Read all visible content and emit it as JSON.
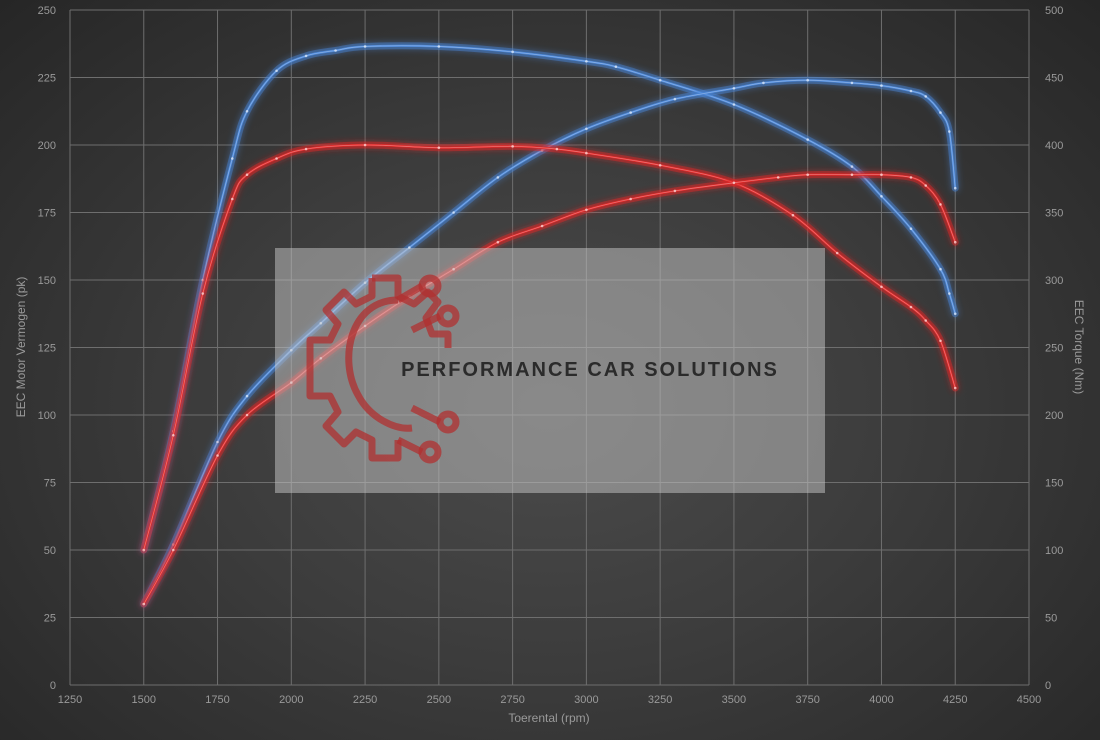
{
  "chart_data": {
    "type": "line",
    "xlabel": "Toerental (rpm)",
    "ylabel_left": "EEC Motor Vermogen (pk)",
    "ylabel_right": "EEC Torque (Nm)",
    "xlim": [
      1250,
      4500
    ],
    "ylim_left": [
      0,
      250
    ],
    "ylim_right": [
      0,
      500
    ],
    "x_ticks": [
      1250,
      1500,
      1750,
      2000,
      2250,
      2500,
      2750,
      3000,
      3250,
      3500,
      3750,
      4000,
      4250,
      4500
    ],
    "y_ticks_left": [
      0,
      25,
      50,
      75,
      100,
      125,
      150,
      175,
      200,
      225,
      250
    ],
    "y_ticks_right": [
      0,
      50,
      100,
      150,
      200,
      250,
      300,
      350,
      400,
      450,
      500
    ],
    "grid": true,
    "series": [
      {
        "axis": "right",
        "color": "#4a86d8",
        "points": [
          [
            1500,
            100
          ],
          [
            1600,
            188
          ],
          [
            1700,
            300
          ],
          [
            1800,
            390
          ],
          [
            1850,
            425
          ],
          [
            1950,
            455
          ],
          [
            2050,
            466
          ],
          [
            2150,
            470
          ],
          [
            2250,
            473
          ],
          [
            2500,
            473
          ],
          [
            2750,
            469
          ],
          [
            3000,
            462
          ],
          [
            3100,
            458
          ],
          [
            3250,
            448
          ],
          [
            3500,
            430
          ],
          [
            3750,
            404
          ],
          [
            3900,
            384
          ],
          [
            4000,
            362
          ],
          [
            4100,
            338
          ],
          [
            4200,
            308
          ],
          [
            4230,
            290
          ],
          [
            4250,
            275
          ]
        ]
      },
      {
        "axis": "left",
        "color": "#4a86d8",
        "points": [
          [
            1500,
            30
          ],
          [
            1600,
            52
          ],
          [
            1750,
            90
          ],
          [
            1850,
            107
          ],
          [
            2000,
            124
          ],
          [
            2100,
            134
          ],
          [
            2250,
            149
          ],
          [
            2400,
            162
          ],
          [
            2550,
            175
          ],
          [
            2700,
            188
          ],
          [
            2850,
            198
          ],
          [
            3000,
            206
          ],
          [
            3150,
            212
          ],
          [
            3300,
            217
          ],
          [
            3500,
            221
          ],
          [
            3600,
            223
          ],
          [
            3750,
            224
          ],
          [
            3900,
            223
          ],
          [
            4000,
            222
          ],
          [
            4100,
            220
          ],
          [
            4150,
            218
          ],
          [
            4200,
            212
          ],
          [
            4230,
            205
          ],
          [
            4250,
            184
          ]
        ]
      },
      {
        "axis": "right",
        "color": "#e02828",
        "points": [
          [
            1500,
            100
          ],
          [
            1600,
            185
          ],
          [
            1700,
            290
          ],
          [
            1800,
            360
          ],
          [
            1850,
            378
          ],
          [
            1950,
            390
          ],
          [
            2050,
            397
          ],
          [
            2250,
            400
          ],
          [
            2500,
            398
          ],
          [
            2750,
            399
          ],
          [
            2900,
            397
          ],
          [
            3000,
            394
          ],
          [
            3250,
            385
          ],
          [
            3500,
            372
          ],
          [
            3700,
            348
          ],
          [
            3850,
            320
          ],
          [
            4000,
            295
          ],
          [
            4100,
            280
          ],
          [
            4150,
            270
          ],
          [
            4200,
            255
          ],
          [
            4250,
            220
          ]
        ]
      },
      {
        "axis": "left",
        "color": "#e02828",
        "points": [
          [
            1500,
            30
          ],
          [
            1600,
            50
          ],
          [
            1750,
            85
          ],
          [
            1850,
            100
          ],
          [
            2000,
            112
          ],
          [
            2100,
            121
          ],
          [
            2250,
            133
          ],
          [
            2400,
            144
          ],
          [
            2550,
            154
          ],
          [
            2700,
            164
          ],
          [
            2850,
            170
          ],
          [
            3000,
            176
          ],
          [
            3150,
            180
          ],
          [
            3300,
            183
          ],
          [
            3500,
            186
          ],
          [
            3650,
            188
          ],
          [
            3750,
            189
          ],
          [
            3900,
            189
          ],
          [
            4000,
            189
          ],
          [
            4100,
            188
          ],
          [
            4150,
            185
          ],
          [
            4200,
            178
          ],
          [
            4250,
            164
          ]
        ]
      }
    ]
  },
  "watermark": {
    "brand_text": "PERFORMANCE CAR SOLUTIONS",
    "logo_icon": "gear-circuit-icon"
  }
}
